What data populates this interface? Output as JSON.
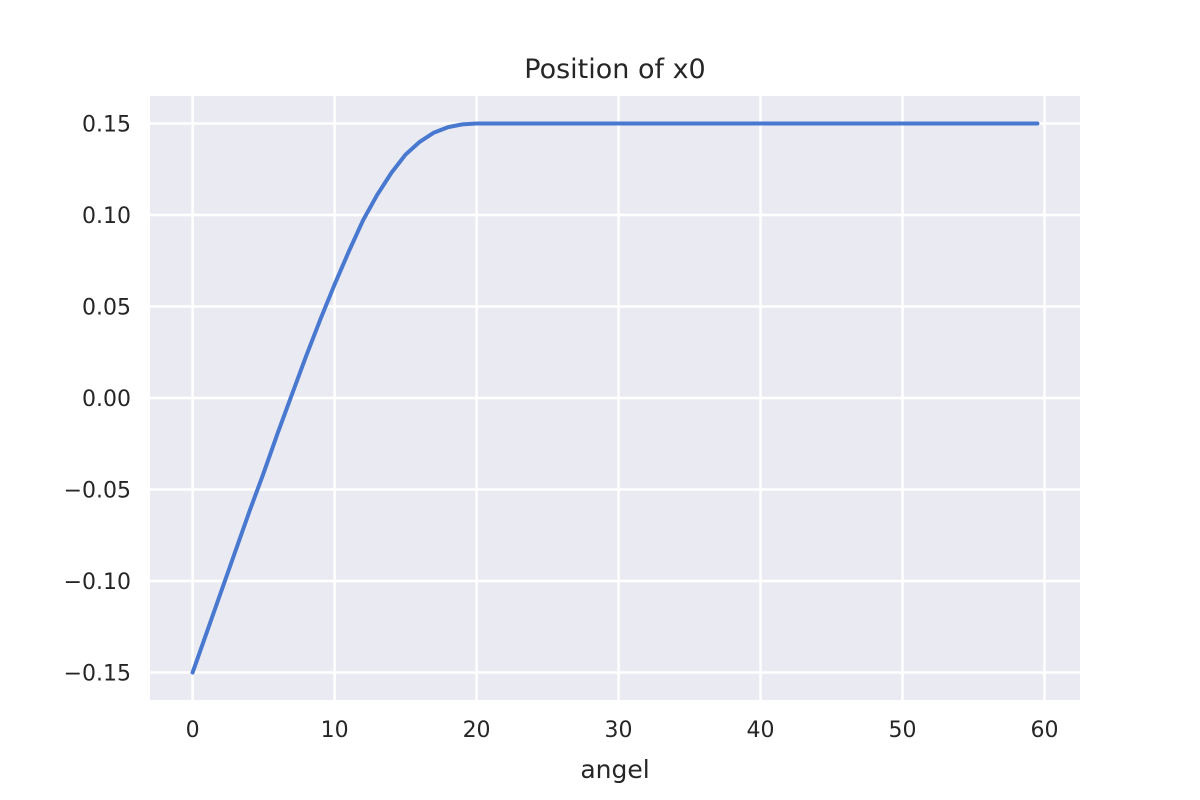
{
  "chart_data": {
    "type": "line",
    "title": "Position of x0",
    "xlabel": "angel",
    "ylabel": "",
    "xlim": [
      -3,
      62.5
    ],
    "ylim": [
      -0.165,
      0.165
    ],
    "x_ticks": [
      0,
      10,
      20,
      30,
      40,
      50,
      60
    ],
    "x_tick_labels": [
      "0",
      "10",
      "20",
      "30",
      "40",
      "50",
      "60"
    ],
    "y_ticks": [
      -0.15,
      -0.1,
      -0.05,
      0.0,
      0.05,
      0.1,
      0.15
    ],
    "y_tick_labels": [
      "−0.15",
      "−0.10",
      "−0.05",
      "0.00",
      "0.05",
      "0.10",
      "0.15"
    ],
    "grid": true,
    "legend": "none",
    "colors": {
      "background": "#eaeaf2",
      "grid": "#ffffff",
      "line": "#4878cf",
      "text": "#262626"
    },
    "series": [
      {
        "x": [
          0,
          1,
          2,
          3,
          4,
          5,
          6,
          7,
          8,
          9,
          10,
          11,
          12,
          13,
          14,
          15,
          16,
          17,
          18,
          19,
          20,
          21,
          22,
          23,
          24,
          25,
          30,
          35,
          40,
          45,
          50,
          55,
          59.5
        ],
        "values": [
          -0.15,
          -0.128,
          -0.106,
          -0.084,
          -0.062,
          -0.041,
          -0.019,
          0.002,
          0.023,
          0.043,
          0.062,
          0.08,
          0.097,
          0.111,
          0.123,
          0.133,
          0.14,
          0.145,
          0.148,
          0.1495,
          0.15,
          0.15,
          0.15,
          0.15,
          0.15,
          0.15,
          0.15,
          0.15,
          0.15,
          0.15,
          0.15,
          0.15,
          0.15
        ]
      }
    ]
  }
}
